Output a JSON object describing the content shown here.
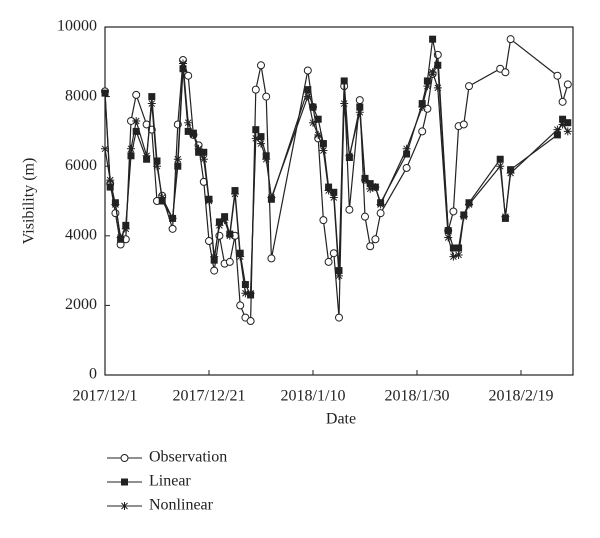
{
  "chart_data": {
    "type": "line",
    "x_label": "Date",
    "y_label": "Visibility (m)",
    "x": [
      "2017/12/1",
      "2017/12/2",
      "2017/12/3",
      "2017/12/4",
      "2017/12/5",
      "2017/12/6",
      "2017/12/7",
      "2017/12/9",
      "2017/12/10",
      "2017/12/11",
      "2017/12/12",
      "2017/12/14",
      "2017/12/15",
      "2017/12/16",
      "2017/12/17",
      "2017/12/18",
      "2017/12/19",
      "2017/12/20",
      "2017/12/21",
      "2017/12/22",
      "2017/12/23",
      "2017/12/24",
      "2017/12/25",
      "2017/12/26",
      "2017/12/27",
      "2017/12/28",
      "2017/12/29",
      "2017/12/30",
      "2017/12/31",
      "2018/1/1",
      "2018/1/2",
      "2018/1/9",
      "2018/1/10",
      "2018/1/11",
      "2018/1/12",
      "2018/1/13",
      "2018/1/14",
      "2018/1/15",
      "2018/1/16",
      "2018/1/17",
      "2018/1/19",
      "2018/1/20",
      "2018/1/21",
      "2018/1/22",
      "2018/1/23",
      "2018/1/28",
      "2018/1/31",
      "2018/2/1",
      "2018/2/2",
      "2018/2/3",
      "2018/2/5",
      "2018/2/6",
      "2018/2/7",
      "2018/2/8",
      "2018/2/9",
      "2018/2/15",
      "2018/2/16",
      "2018/2/17",
      "2018/2/26",
      "2018/2/27",
      "2018/2/28"
    ],
    "series": [
      {
        "name": "Observation",
        "color": "#222222",
        "marker": "circle",
        "values": [
          8150,
          5500,
          4650,
          3750,
          3900,
          7300,
          8050,
          7200,
          7050,
          5000,
          5150,
          4200,
          7200,
          9050,
          8600,
          6900,
          6600,
          5550,
          3850,
          3000,
          4000,
          3200,
          3250,
          4000,
          2000,
          1650,
          1550,
          8200,
          8900,
          8000,
          3350,
          8750,
          7700,
          6800,
          4450,
          3250,
          3500,
          1650,
          8300,
          4750,
          7900,
          4550,
          3700,
          3900,
          4650,
          5950,
          7000,
          7650,
          8650,
          9200,
          4150,
          4700,
          7150,
          7200,
          8300,
          8800,
          8700,
          9650,
          8600,
          7850,
          8350
        ]
      },
      {
        "name": "Linear",
        "color": "#222222",
        "marker": "square",
        "values": [
          8100,
          5400,
          4950,
          3900,
          4300,
          6300,
          7000,
          6200,
          8000,
          6150,
          5000,
          4500,
          6000,
          8800,
          7000,
          6950,
          6400,
          6400,
          5050,
          3300,
          4400,
          4550,
          4050,
          5300,
          3500,
          2600,
          2300,
          7050,
          6850,
          6300,
          5050,
          8200,
          7700,
          7350,
          6650,
          5400,
          5250,
          3000,
          8450,
          6250,
          7700,
          5650,
          5500,
          5400,
          4950,
          6350,
          7800,
          8450,
          9650,
          8900,
          4150,
          3650,
          3650,
          4600,
          4950,
          6200,
          4500,
          5900,
          6900,
          7350,
          7250
        ]
      },
      {
        "name": "Nonlinear",
        "color": "#222222",
        "marker": "star",
        "values": [
          6500,
          5600,
          4900,
          3950,
          4200,
          6500,
          7300,
          6300,
          7800,
          6000,
          5100,
          4500,
          6200,
          8950,
          7250,
          6900,
          6500,
          6200,
          5000,
          3400,
          4300,
          4450,
          4000,
          5200,
          3400,
          2350,
          2350,
          6800,
          6650,
          6200,
          5100,
          8000,
          7250,
          6900,
          6450,
          5300,
          5100,
          2850,
          7800,
          6300,
          7550,
          5600,
          5350,
          5400,
          4900,
          6500,
          7700,
          8300,
          8700,
          8250,
          3950,
          3400,
          3450,
          4550,
          4900,
          6000,
          4550,
          5800,
          7050,
          7200,
          7000
        ]
      }
    ],
    "xlim": [
      "2017/12/1",
      "2018/3/1"
    ],
    "xticks": [
      "2017/12/1",
      "2017/12/21",
      "2018/1/10",
      "2018/1/30",
      "2018/2/19"
    ],
    "ylim": [
      0,
      10000
    ],
    "yticks": [
      0,
      2000,
      4000,
      6000,
      8000,
      10000
    ]
  }
}
